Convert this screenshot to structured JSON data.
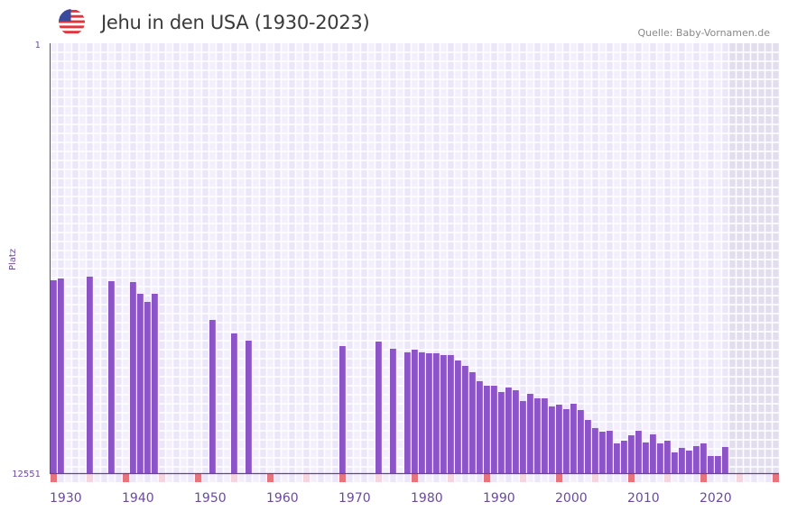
{
  "header": {
    "title": "Jehu in den USA (1930-2023)",
    "source": "Quelle: Baby-Vornamen.de",
    "flag_icon": "usa-flag-icon"
  },
  "colors": {
    "bar": "#8c54c6",
    "axis": "#6a3fa0",
    "grid_bg_a": "#f3effb",
    "grid_bg_b": "#ece7f8",
    "future_bg": "#e2deed",
    "decade_marker": "#e8737a",
    "half_decade_marker": "#f5d6de"
  },
  "chart_data": {
    "type": "bar",
    "title": "Jehu in den USA (1930-2023)",
    "xlabel": "",
    "ylabel": "Platz",
    "ylim": [
      1,
      12551
    ],
    "y_inverted": true,
    "y_tick_labels": [
      "1",
      "12551"
    ],
    "x_range": [
      1930,
      2030
    ],
    "x_tick_labels": [
      "1930",
      "1940",
      "1950",
      "1960",
      "1970",
      "1980",
      "1990",
      "2000",
      "2010",
      "2020"
    ],
    "grid": true,
    "data_end_year": 2023,
    "points": [
      {
        "year": 1930,
        "rank": 6921
      },
      {
        "year": 1931,
        "rank": 6868
      },
      {
        "year": 1935,
        "rank": 6815
      },
      {
        "year": 1938,
        "rank": 6947
      },
      {
        "year": 1941,
        "rank": 6973
      },
      {
        "year": 1942,
        "rank": 7315
      },
      {
        "year": 1943,
        "rank": 7552
      },
      {
        "year": 1944,
        "rank": 7315
      },
      {
        "year": 1952,
        "rank": 8078
      },
      {
        "year": 1955,
        "rank": 8473
      },
      {
        "year": 1957,
        "rank": 8683
      },
      {
        "year": 1970,
        "rank": 8841
      },
      {
        "year": 1975,
        "rank": 8710
      },
      {
        "year": 1977,
        "rank": 8920
      },
      {
        "year": 1979,
        "rank": 9025
      },
      {
        "year": 1980,
        "rank": 8946
      },
      {
        "year": 1981,
        "rank": 9025
      },
      {
        "year": 1982,
        "rank": 9052
      },
      {
        "year": 1983,
        "rank": 9052
      },
      {
        "year": 1984,
        "rank": 9104
      },
      {
        "year": 1985,
        "rank": 9104
      },
      {
        "year": 1986,
        "rank": 9262
      },
      {
        "year": 1987,
        "rank": 9420
      },
      {
        "year": 1988,
        "rank": 9604
      },
      {
        "year": 1989,
        "rank": 9867
      },
      {
        "year": 1990,
        "rank": 9999
      },
      {
        "year": 1991,
        "rank": 9999
      },
      {
        "year": 1992,
        "rank": 10183
      },
      {
        "year": 1993,
        "rank": 10052
      },
      {
        "year": 1994,
        "rank": 10131
      },
      {
        "year": 1995,
        "rank": 10447
      },
      {
        "year": 1996,
        "rank": 10236
      },
      {
        "year": 1997,
        "rank": 10367
      },
      {
        "year": 1998,
        "rank": 10367
      },
      {
        "year": 1999,
        "rank": 10604
      },
      {
        "year": 2000,
        "rank": 10551
      },
      {
        "year": 2001,
        "rank": 10683
      },
      {
        "year": 2002,
        "rank": 10525
      },
      {
        "year": 2003,
        "rank": 10709
      },
      {
        "year": 2004,
        "rank": 10999
      },
      {
        "year": 2005,
        "rank": 11235
      },
      {
        "year": 2006,
        "rank": 11340
      },
      {
        "year": 2007,
        "rank": 11314
      },
      {
        "year": 2008,
        "rank": 11683
      },
      {
        "year": 2009,
        "rank": 11604
      },
      {
        "year": 2010,
        "rank": 11446
      },
      {
        "year": 2011,
        "rank": 11314
      },
      {
        "year": 2012,
        "rank": 11656
      },
      {
        "year": 2013,
        "rank": 11420
      },
      {
        "year": 2014,
        "rank": 11683
      },
      {
        "year": 2015,
        "rank": 11604
      },
      {
        "year": 2016,
        "rank": 11946
      },
      {
        "year": 2017,
        "rank": 11814
      },
      {
        "year": 2018,
        "rank": 11893
      },
      {
        "year": 2019,
        "rank": 11762
      },
      {
        "year": 2020,
        "rank": 11683
      },
      {
        "year": 2021,
        "rank": 12051
      },
      {
        "year": 2022,
        "rank": 12051
      },
      {
        "year": 2023,
        "rank": 11788
      }
    ]
  }
}
